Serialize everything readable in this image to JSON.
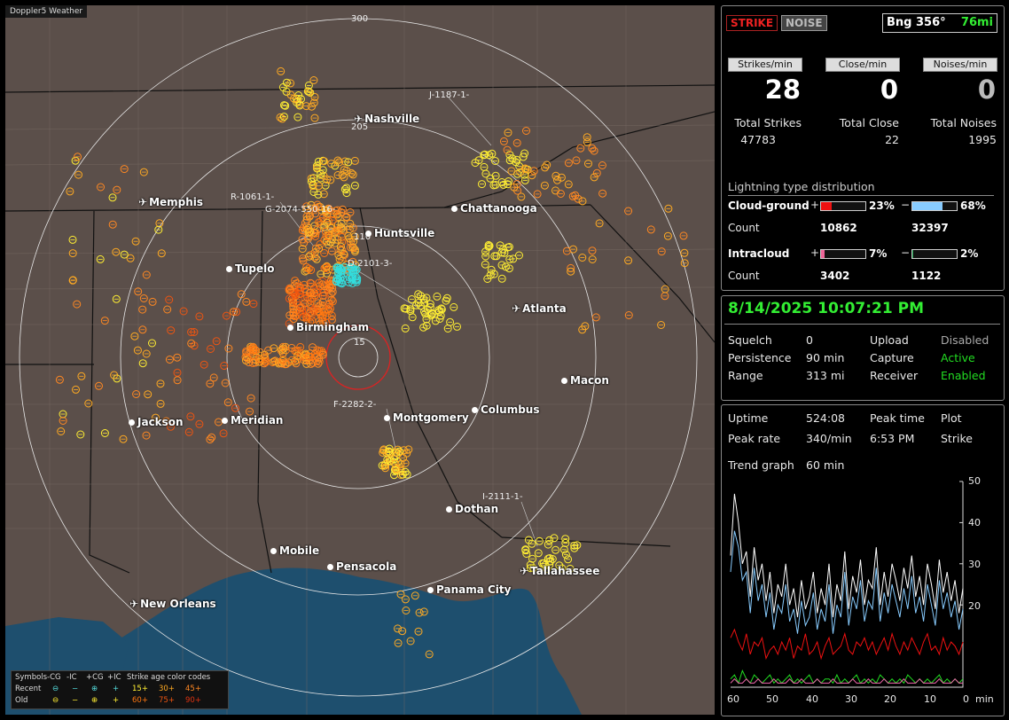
{
  "app_title": "Doppler5 Weather",
  "map": {
    "ring_labels": {
      "r300": "300",
      "r205": "205",
      "r110": "110",
      "r15": "15"
    },
    "cities": [
      {
        "name": "Nashville",
        "kind": "airport"
      },
      {
        "name": "Memphis",
        "kind": "airport"
      },
      {
        "name": "Chattanooga",
        "kind": "city"
      },
      {
        "name": "Huntsville",
        "kind": "city"
      },
      {
        "name": "Tupelo",
        "kind": "city"
      },
      {
        "name": "Atlanta",
        "kind": "airport"
      },
      {
        "name": "Birmingham",
        "kind": "city"
      },
      {
        "name": "Macon",
        "kind": "city"
      },
      {
        "name": "Jackson",
        "kind": "city"
      },
      {
        "name": "Meridian",
        "kind": "city"
      },
      {
        "name": "Montgomery",
        "kind": "city"
      },
      {
        "name": "Columbus",
        "kind": "city"
      },
      {
        "name": "Dothan",
        "kind": "city"
      },
      {
        "name": "Mobile",
        "kind": "city"
      },
      {
        "name": "Pensacola",
        "kind": "city"
      },
      {
        "name": "Panama City",
        "kind": "city"
      },
      {
        "name": "Tallahassee",
        "kind": "airport"
      },
      {
        "name": "New Orleans",
        "kind": "airport"
      }
    ],
    "storm_labels": [
      "J-1187-1-",
      "R-1061-1-",
      "G-2074-550-16-",
      "D-2101-3-",
      "F-2282-2-",
      "I-2111-1-"
    ]
  },
  "legend": {
    "symbols_label": "Symbols",
    "recent_label": "Recent",
    "old_label": "Old",
    "col_neg_cg": "-CG",
    "col_neg_ic": "-IC",
    "col_pos_cg": "+CG",
    "col_pos_ic": "+IC",
    "age_title": "Strike age color codes",
    "recent_ages": [
      "15+",
      "30+",
      "45+"
    ],
    "old_ages": [
      "60+",
      "75+",
      "90+"
    ],
    "age_colors": [
      "#ffee33",
      "#ffaa22",
      "#ff8822",
      "#ff7711",
      "#ee5511",
      "#dd3311"
    ]
  },
  "top_panel": {
    "strike_btn": "STRIKE",
    "noise_btn": "NOISE",
    "bearing_label": "Bng 356°",
    "distance": "76mi",
    "stats": [
      {
        "header": "Strikes/min",
        "value": "28",
        "total_label": "Total Strikes",
        "total": "47783"
      },
      {
        "header": "Close/min",
        "value": "0",
        "total_label": "Total Close",
        "total": "22"
      },
      {
        "header": "Noises/min",
        "value": "0",
        "total_label": "Total Noises",
        "total": "1995"
      }
    ],
    "distribution_title": "Lightning type distribution",
    "cloud_ground": {
      "label": "Cloud-ground",
      "pos_pct": "23%",
      "neg_pct": "68%",
      "pos_fraction": 0.23,
      "neg_fraction": 0.68,
      "pos_count": "10862",
      "neg_count": "32397"
    },
    "intracloud": {
      "label": "Intracloud",
      "pos_pct": "7%",
      "neg_pct": "2%",
      "pos_fraction": 0.07,
      "neg_fraction": 0.02,
      "pos_count": "3402",
      "neg_count": "1122"
    },
    "count_label": "Count",
    "plus": "+",
    "minus": "−",
    "colors": {
      "cg_pos": "#ee1111",
      "cg_neg": "#88ccff",
      "ic_pos": "#ee6699",
      "ic_neg": "#119944"
    }
  },
  "mid_panel": {
    "datetime": "8/14/2025 10:07:21 PM",
    "rows": [
      {
        "k1": "Squelch",
        "v1": "0",
        "k2": "Upload",
        "v2": "Disabled"
      },
      {
        "k1": "Persistence",
        "v1": "90 min",
        "k2": "Capture",
        "v2": "Active"
      },
      {
        "k1": "Range",
        "v1": "313 mi",
        "k2": "Receiver",
        "v2": "Enabled"
      }
    ]
  },
  "bottom_panel": {
    "uptime_label": "Uptime",
    "uptime": "524:08",
    "peak_time_label": "Peak time",
    "plot_label": "Plot",
    "peak_rate_label": "Peak rate",
    "peak_rate": "340/min",
    "peak_time": "6:53 PM",
    "plot_value": "Strike",
    "trend_label": "Trend graph",
    "trend_window": "60 min",
    "y_ticks": [
      "50",
      "40",
      "30",
      "20"
    ],
    "x_ticks": [
      "60",
      "50",
      "40",
      "30",
      "20",
      "10",
      "0"
    ],
    "x_unit": "min"
  },
  "chart_data": {
    "type": "line",
    "title": "",
    "xlabel": "min",
    "ylabel": "",
    "xlim": [
      60,
      0
    ],
    "ylim": [
      0,
      50
    ],
    "y_ticks": [
      20,
      30,
      40,
      50
    ],
    "x_ticks": [
      60,
      50,
      40,
      30,
      20,
      10,
      0
    ],
    "series": [
      {
        "color": "#ffffff",
        "values": [
          32,
          47,
          40,
          30,
          33,
          22,
          34,
          26,
          30,
          21,
          28,
          18,
          25,
          22,
          30,
          20,
          24,
          17,
          26,
          19,
          22,
          28,
          18,
          24,
          20,
          30,
          17,
          25,
          21,
          33,
          19,
          27,
          23,
          31,
          20,
          26,
          24,
          34,
          20,
          28,
          22,
          30,
          26,
          21,
          29,
          24,
          32,
          22,
          27,
          20,
          30,
          25,
          19,
          31,
          23,
          28,
          21,
          26,
          18,
          24
        ]
      },
      {
        "color": "#88ccff",
        "values": [
          28,
          38,
          34,
          26,
          28,
          18,
          29,
          21,
          25,
          17,
          23,
          14,
          20,
          18,
          25,
          16,
          19,
          13,
          21,
          15,
          17,
          23,
          14,
          19,
          16,
          25,
          13,
          20,
          17,
          28,
          15,
          22,
          19,
          26,
          16,
          21,
          19,
          29,
          16,
          23,
          18,
          25,
          21,
          17,
          24,
          19,
          27,
          18,
          22,
          16,
          25,
          20,
          15,
          26,
          19,
          23,
          17,
          21,
          14,
          19
        ]
      },
      {
        "color": "#ee1111",
        "values": [
          12,
          14,
          11,
          9,
          13,
          8,
          11,
          10,
          12,
          7,
          9,
          10,
          8,
          11,
          9,
          12,
          7,
          10,
          9,
          13,
          8,
          9,
          11,
          7,
          10,
          12,
          8,
          9,
          10,
          13,
          9,
          8,
          11,
          10,
          12,
          9,
          11,
          8,
          10,
          12,
          9,
          13,
          10,
          8,
          11,
          9,
          12,
          10,
          8,
          11,
          13,
          9,
          10,
          8,
          12,
          9,
          11,
          10,
          8,
          11
        ]
      },
      {
        "color": "#22dd22",
        "values": [
          2,
          3,
          1,
          4,
          2,
          1,
          3,
          2,
          1,
          2,
          3,
          1,
          2,
          1,
          2,
          3,
          1,
          2,
          1,
          2,
          3,
          1,
          2,
          1,
          2,
          2,
          1,
          3,
          1,
          2,
          1,
          2,
          3,
          1,
          2,
          1,
          2,
          1,
          3,
          2,
          1,
          2,
          1,
          2,
          1,
          3,
          2,
          1,
          2,
          1,
          2,
          1,
          2,
          3,
          1,
          2,
          1,
          2,
          1,
          2
        ]
      },
      {
        "color": "#ee66aa",
        "values": [
          1,
          2,
          1,
          1,
          2,
          1,
          1,
          2,
          1,
          1,
          1,
          2,
          1,
          1,
          1,
          2,
          1,
          1,
          2,
          1,
          1,
          1,
          2,
          1,
          1,
          1,
          2,
          1,
          1,
          1,
          1,
          2,
          1,
          1,
          1,
          2,
          1,
          1,
          1,
          2,
          1,
          1,
          1,
          1,
          2,
          1,
          1,
          1,
          2,
          1,
          1,
          1,
          1,
          2,
          1,
          1,
          1,
          2,
          1,
          1
        ]
      }
    ]
  }
}
